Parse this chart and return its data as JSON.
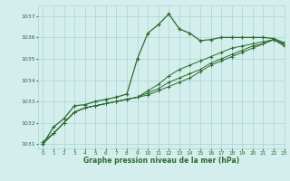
{
  "title": "Graphe pression niveau de la mer (hPa)",
  "background_color": "#d4eeee",
  "grid_color": "#a8d4d4",
  "line_color": "#2d6b2d",
  "xlim": [
    -0.5,
    23
  ],
  "ylim": [
    1030.8,
    1037.5
  ],
  "yticks": [
    1031,
    1032,
    1033,
    1034,
    1035,
    1036,
    1037
  ],
  "xticks": [
    0,
    1,
    2,
    3,
    4,
    5,
    6,
    7,
    8,
    9,
    10,
    11,
    12,
    13,
    14,
    15,
    16,
    17,
    18,
    19,
    20,
    21,
    22,
    23
  ],
  "series": [
    [
      1031.0,
      1031.8,
      1032.2,
      1032.8,
      1032.85,
      1033.0,
      1033.1,
      1033.2,
      1033.35,
      1035.0,
      1036.2,
      1036.6,
      1037.1,
      1036.4,
      1036.2,
      1035.85,
      1035.9,
      1036.0,
      1036.0,
      1036.0,
      1036.0,
      1036.0,
      1035.95,
      1035.75
    ],
    [
      1031.1,
      1031.5,
      1032.0,
      1032.5,
      1032.7,
      1032.8,
      1032.9,
      1033.0,
      1033.1,
      1033.2,
      1033.5,
      1033.8,
      1034.2,
      1034.5,
      1034.7,
      1034.9,
      1035.1,
      1035.3,
      1035.5,
      1035.6,
      1035.7,
      1035.8,
      1035.9,
      1035.7
    ],
    [
      1031.1,
      1031.5,
      1032.0,
      1032.5,
      1032.7,
      1032.8,
      1032.9,
      1033.0,
      1033.1,
      1033.2,
      1033.4,
      1033.6,
      1033.9,
      1034.1,
      1034.3,
      1034.5,
      1034.8,
      1035.0,
      1035.2,
      1035.4,
      1035.6,
      1035.7,
      1035.9,
      1035.65
    ],
    [
      1031.0,
      1031.5,
      1032.0,
      1032.5,
      1032.7,
      1032.8,
      1032.9,
      1033.0,
      1033.1,
      1033.2,
      1033.3,
      1033.5,
      1033.7,
      1033.9,
      1034.1,
      1034.4,
      1034.7,
      1034.9,
      1035.1,
      1035.3,
      1035.5,
      1035.7,
      1035.9,
      1035.6
    ]
  ]
}
